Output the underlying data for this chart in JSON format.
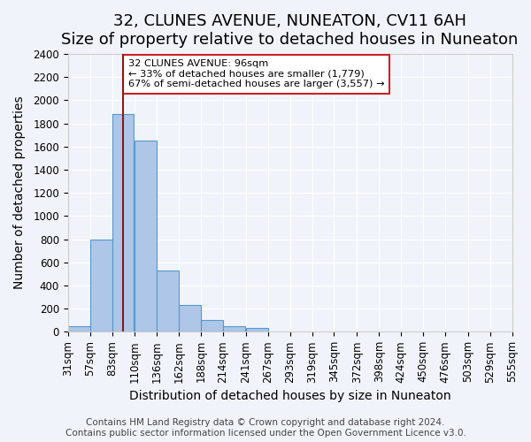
{
  "title": "32, CLUNES AVENUE, NUNEATON, CV11 6AH",
  "subtitle": "Size of property relative to detached houses in Nuneaton",
  "xlabel": "Distribution of detached houses by size in Nuneaton",
  "ylabel": "Number of detached properties",
  "bar_values": [
    50,
    800,
    1880,
    1650,
    530,
    235,
    105,
    50,
    30
  ],
  "bin_edges": [
    31,
    57,
    83,
    110,
    136,
    162,
    188,
    214,
    241,
    267
  ],
  "all_tick_labels": [
    "31sqm",
    "57sqm",
    "83sqm",
    "110sqm",
    "136sqm",
    "162sqm",
    "188sqm",
    "214sqm",
    "241sqm",
    "267sqm",
    "293sqm",
    "319sqm",
    "345sqm",
    "372sqm",
    "398sqm",
    "424sqm",
    "450sqm",
    "476sqm",
    "503sqm",
    "529sqm",
    "555sqm"
  ],
  "ylim": [
    0,
    2400
  ],
  "yticks": [
    0,
    200,
    400,
    600,
    800,
    1000,
    1200,
    1400,
    1600,
    1800,
    2000,
    2200,
    2400
  ],
  "bar_color": "#aec6e8",
  "bar_edge_color": "#5599cc",
  "vline_x": 96,
  "vline_color": "#8b1a1a",
  "annotation_title": "32 CLUNES AVENUE: 96sqm",
  "annotation_line1": "← 33% of detached houses are smaller (1,779)",
  "annotation_line2": "67% of semi-detached houses are larger (3,557) →",
  "footer1": "Contains HM Land Registry data © Crown copyright and database right 2024.",
  "footer2": "Contains public sector information licensed under the Open Government Licence v3.0.",
  "bg_color": "#f0f4fa",
  "plot_bg_color": "#f0f4fa",
  "title_fontsize": 13,
  "axis_label_fontsize": 10,
  "tick_fontsize": 8.5,
  "footer_fontsize": 7.5
}
